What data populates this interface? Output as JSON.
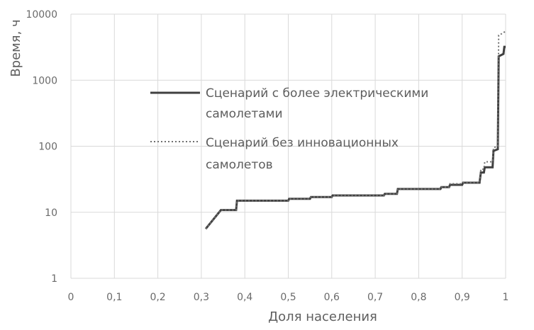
{
  "chart_data": {
    "type": "line",
    "title": "",
    "xlabel": "Доля населения",
    "ylabel": "Время, ч",
    "xlim": [
      0,
      1
    ],
    "ylim": [
      1,
      10000
    ],
    "yscale": "log",
    "grid": true,
    "legend_position": "center",
    "x_tick_labels": [
      "0",
      "0,1",
      "0,2",
      "0,3",
      "0,4",
      "0,5",
      "0,6",
      "0,7",
      "0,8",
      "0,9",
      "1"
    ],
    "x_tick_values": [
      0,
      0.1,
      0.2,
      0.3,
      0.4,
      0.5,
      0.6,
      0.7,
      0.8,
      0.9,
      1
    ],
    "y_tick_labels": [
      "1",
      "10",
      "100",
      "1000",
      "10000"
    ],
    "y_tick_values": [
      1,
      10,
      100,
      1000,
      10000
    ],
    "series": [
      {
        "name": "Сценарий с более электрическими самолетами",
        "color": "#404040",
        "line_style": "solid",
        "legend_lines": [
          "Сценарий с более электрическими",
          "самолетами"
        ],
        "points": [
          [
            0.31,
            5.6
          ],
          [
            0.345,
            10.8
          ],
          [
            0.38,
            10.8
          ],
          [
            0.382,
            15.0
          ],
          [
            0.5,
            15.0
          ],
          [
            0.502,
            16.0
          ],
          [
            0.55,
            16.0
          ],
          [
            0.552,
            17.0
          ],
          [
            0.6,
            17.0
          ],
          [
            0.602,
            18.0
          ],
          [
            0.72,
            18.0
          ],
          [
            0.722,
            19.0
          ],
          [
            0.75,
            19.0
          ],
          [
            0.752,
            22.5
          ],
          [
            0.85,
            22.5
          ],
          [
            0.852,
            24.0
          ],
          [
            0.87,
            24.0
          ],
          [
            0.872,
            26.0
          ],
          [
            0.9,
            26.0
          ],
          [
            0.902,
            28.0
          ],
          [
            0.94,
            28.0
          ],
          [
            0.943,
            40.0
          ],
          [
            0.95,
            40.0
          ],
          [
            0.952,
            48.0
          ],
          [
            0.97,
            48.0
          ],
          [
            0.972,
            85.0
          ],
          [
            0.982,
            90.0
          ],
          [
            0.984,
            2300.0
          ],
          [
            0.995,
            2500.0
          ],
          [
            0.997,
            3200.0
          ],
          [
            1.0,
            3200.0
          ]
        ]
      },
      {
        "name": "Сценарий без инновационных самолетов",
        "color": "#707070",
        "line_style": "dotted",
        "legend_lines": [
          "Сценарий без инновационных",
          "самолетов"
        ],
        "points": [
          [
            0.31,
            5.6
          ],
          [
            0.345,
            10.8
          ],
          [
            0.38,
            10.8
          ],
          [
            0.382,
            15.0
          ],
          [
            0.5,
            15.0
          ],
          [
            0.502,
            16.0
          ],
          [
            0.55,
            16.0
          ],
          [
            0.552,
            17.0
          ],
          [
            0.6,
            17.0
          ],
          [
            0.602,
            18.0
          ],
          [
            0.72,
            18.0
          ],
          [
            0.722,
            19.0
          ],
          [
            0.75,
            19.0
          ],
          [
            0.752,
            22.5
          ],
          [
            0.85,
            22.5
          ],
          [
            0.852,
            24.0
          ],
          [
            0.87,
            24.0
          ],
          [
            0.872,
            27.0
          ],
          [
            0.9,
            27.0
          ],
          [
            0.902,
            28.0
          ],
          [
            0.94,
            28.0
          ],
          [
            0.943,
            45.0
          ],
          [
            0.95,
            45.0
          ],
          [
            0.952,
            58.0
          ],
          [
            0.97,
            58.0
          ],
          [
            0.972,
            95.0
          ],
          [
            0.982,
            100.0
          ],
          [
            0.984,
            4800.0
          ],
          [
            0.995,
            5200.0
          ],
          [
            1.0,
            5600.0
          ]
        ]
      }
    ]
  }
}
